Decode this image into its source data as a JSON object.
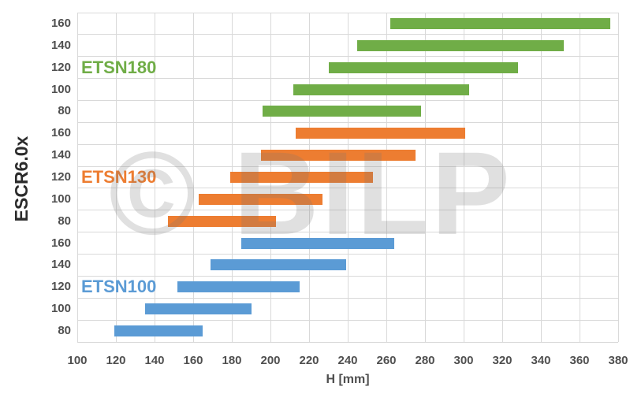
{
  "watermark": {
    "text": "© BILP"
  },
  "ui_colors": {
    "background": "#FFFFFF",
    "gridline": "#D9D9D9",
    "axis_text": "#4F4F4F",
    "axis_title_text": "#2B2B2B",
    "watermark_gray": "#787878"
  },
  "chart_data": {
    "type": "bar",
    "subtype": "horizontal-floating-range-bars",
    "title": "",
    "xlabel": "H [mm]",
    "ylabel": "ESCR6.0x",
    "xlim": [
      100,
      380
    ],
    "xticks": [
      100,
      120,
      140,
      160,
      180,
      200,
      220,
      240,
      260,
      280,
      300,
      320,
      340,
      360,
      380
    ],
    "grid": true,
    "legend_position": "inline-series-labels",
    "series": [
      {
        "name": "ETSN180",
        "color": "#70AD47",
        "bars": [
          {
            "category": 160,
            "from": 262,
            "to": 376
          },
          {
            "category": 140,
            "from": 245,
            "to": 352
          },
          {
            "category": 120,
            "from": 230,
            "to": 328
          },
          {
            "category": 100,
            "from": 212,
            "to": 303
          },
          {
            "category": 80,
            "from": 196,
            "to": 278
          }
        ]
      },
      {
        "name": "ETSN130",
        "color": "#ED7D31",
        "bars": [
          {
            "category": 160,
            "from": 213,
            "to": 301
          },
          {
            "category": 140,
            "from": 195,
            "to": 275
          },
          {
            "category": 120,
            "from": 179,
            "to": 253
          },
          {
            "category": 100,
            "from": 163,
            "to": 227
          },
          {
            "category": 80,
            "from": 147,
            "to": 203
          }
        ]
      },
      {
        "name": "ETSN100",
        "color": "#5B9BD5",
        "bars": [
          {
            "category": 160,
            "from": 185,
            "to": 264
          },
          {
            "category": 140,
            "from": 169,
            "to": 239
          },
          {
            "category": 120,
            "from": 152,
            "to": 215
          },
          {
            "category": 100,
            "from": 135,
            "to": 190
          },
          {
            "category": 80,
            "from": 119,
            "to": 165
          }
        ]
      }
    ]
  }
}
